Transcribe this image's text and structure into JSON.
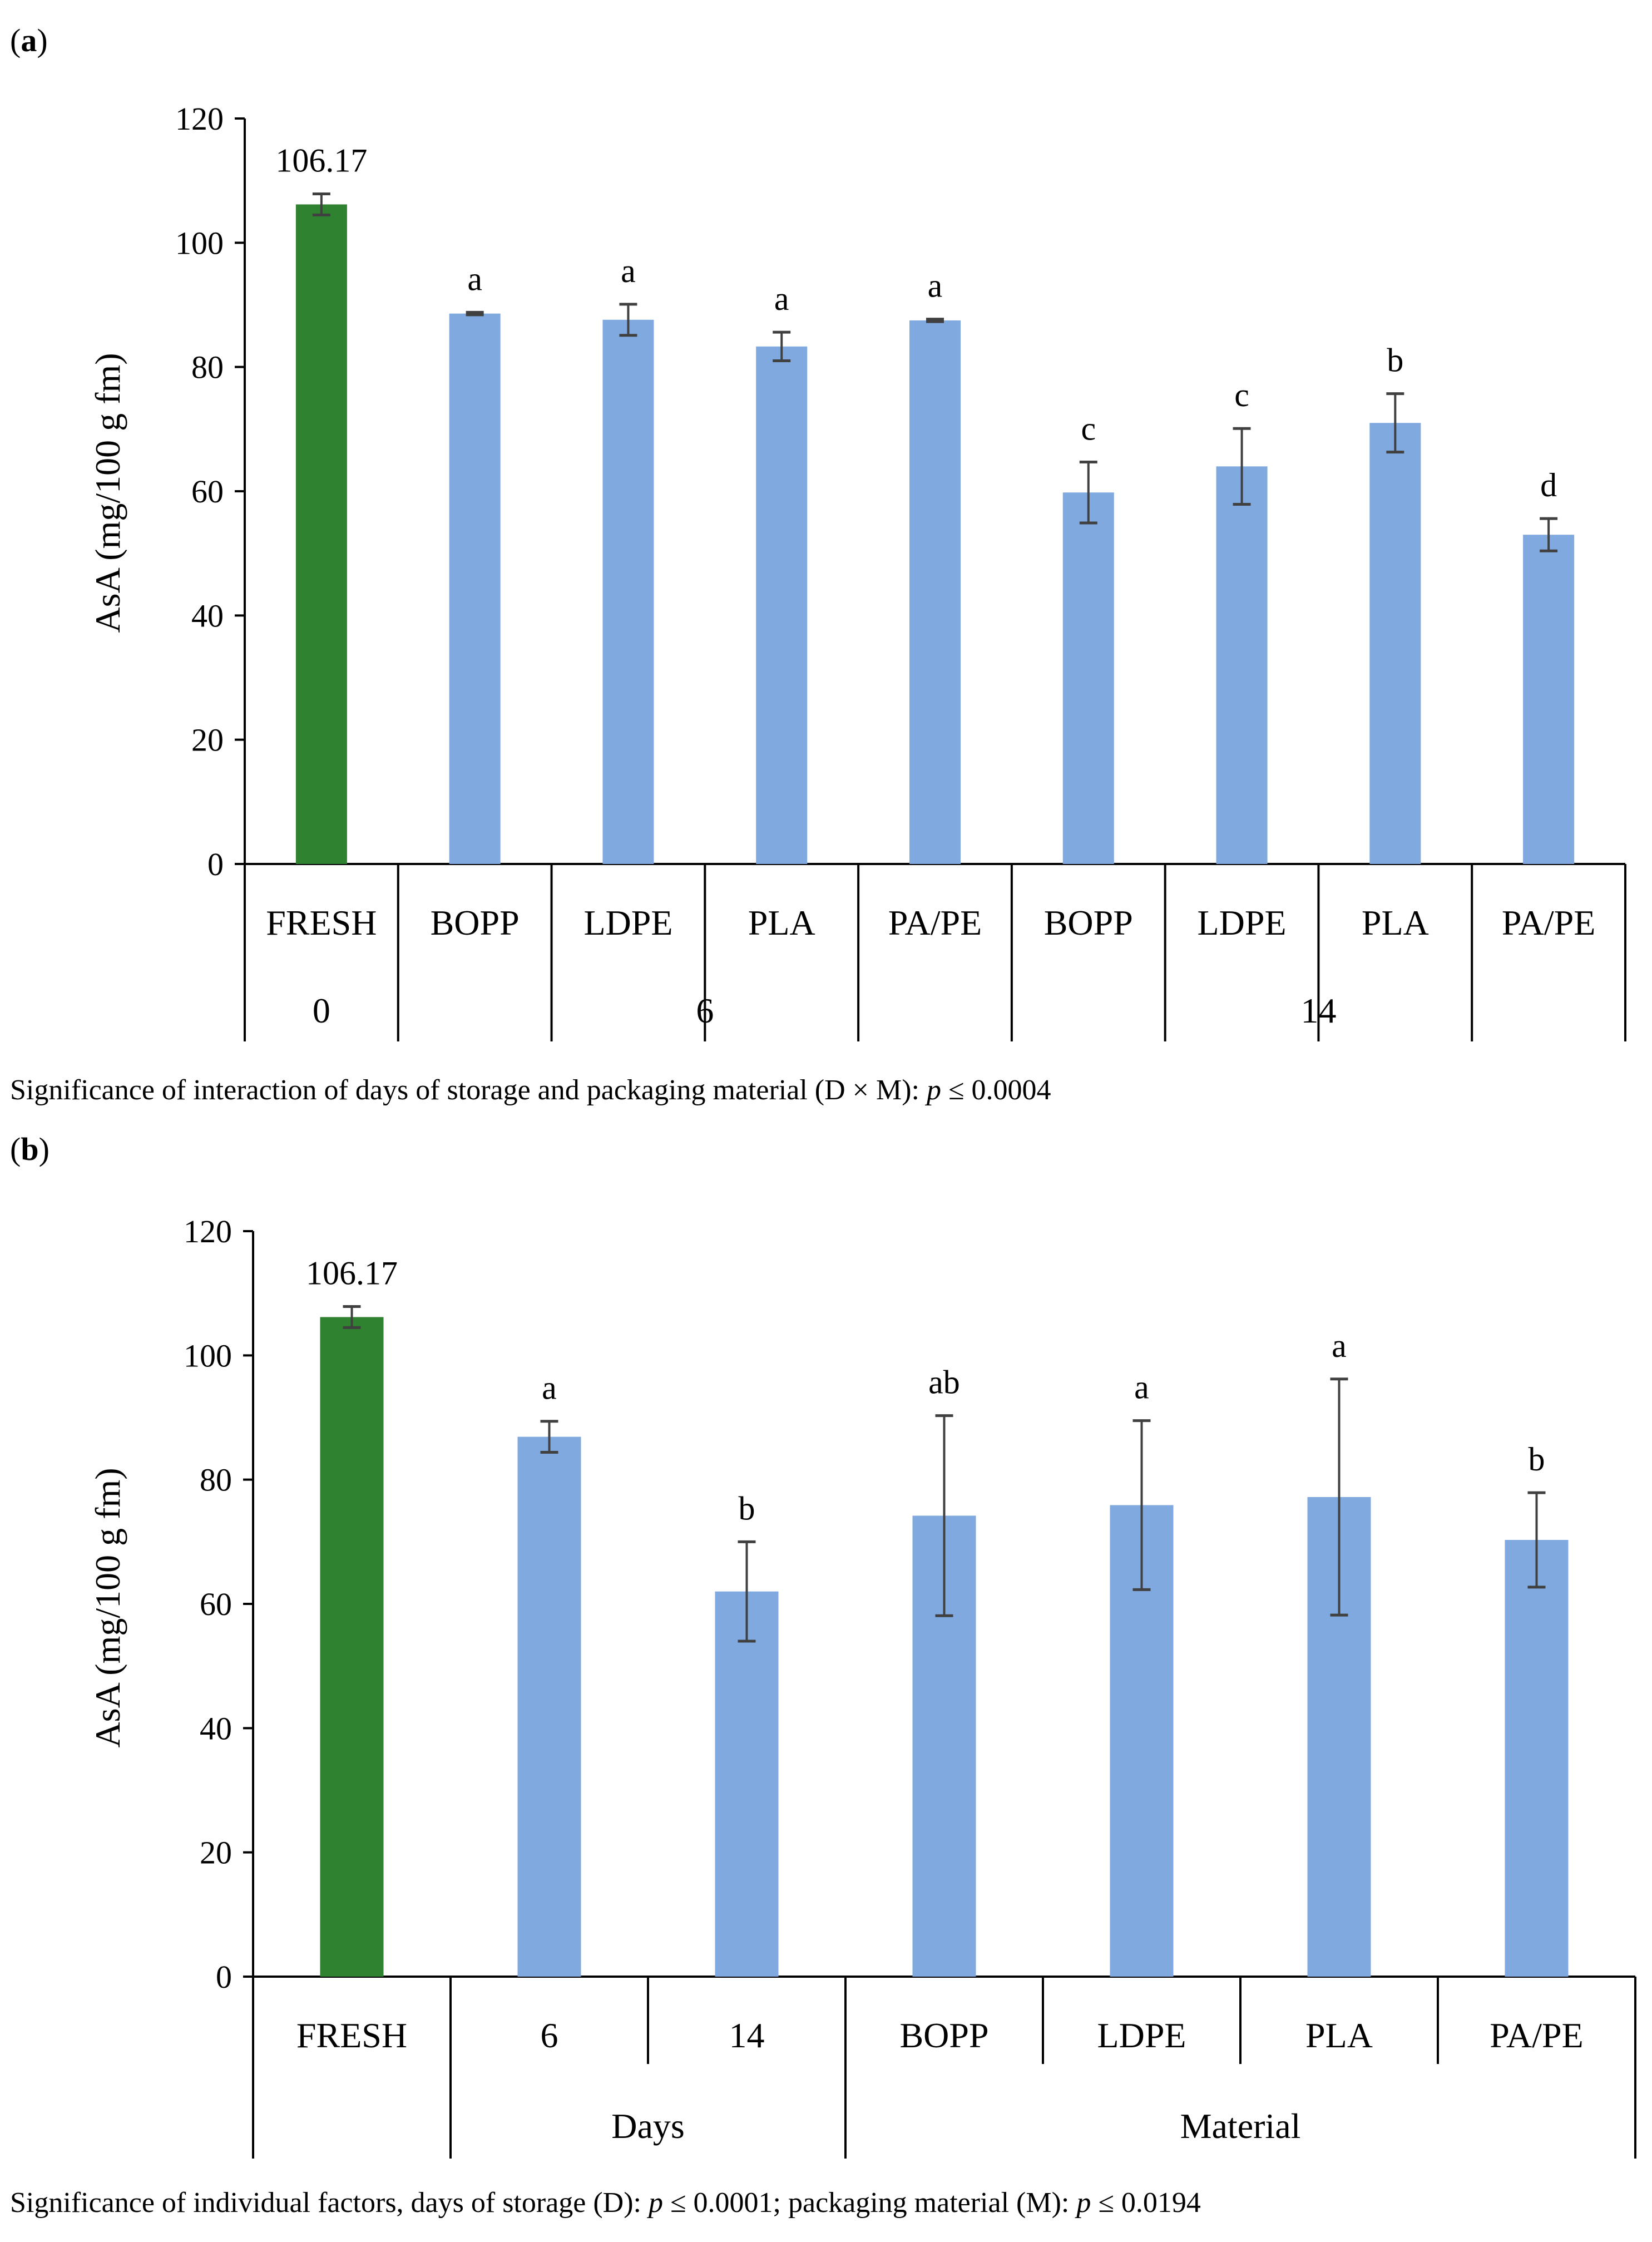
{
  "panels": [
    {
      "label_open": "(",
      "label_letter": "a",
      "label_close": ")",
      "caption": {
        "prefix": "Significance of interaction of days of storage and packaging material (D × M): ",
        "pvar": "p",
        "suffix": " ≤ 0.0004"
      }
    },
    {
      "label_open": "(",
      "label_letter": "b",
      "label_close": ")",
      "caption": {
        "prefix": "Significance of individual factors, days of storage (D): ",
        "pvar": "p",
        "middle": " ≤ 0.0001; packaging material (M): ",
        "pvar2": "p",
        "suffix": " ≤ 0.0194"
      }
    }
  ],
  "colors": {
    "fresh": "#2e8230",
    "bar": "#80aadf",
    "axis": "#000000",
    "error": "#404040"
  },
  "chart_data": [
    {
      "type": "bar",
      "title": "",
      "ylabel": "AsA (mg/100 g fm)",
      "ylim": [
        0,
        120
      ],
      "yticks": [
        "0",
        "20",
        "40",
        "60",
        "80",
        "100",
        "120"
      ],
      "categories": [
        "FRESH",
        "BOPP",
        "LDPE",
        "PLA",
        "PA/PE",
        "BOPP",
        "LDPE",
        "PLA",
        "PA/PE"
      ],
      "groups": [
        {
          "label": "0",
          "span": [
            0,
            0
          ]
        },
        {
          "label": "6",
          "span": [
            1,
            4
          ]
        },
        {
          "label": "14",
          "span": [
            5,
            8
          ]
        }
      ],
      "values": [
        106.17,
        88.6,
        87.6,
        83.3,
        87.5,
        59.8,
        64.0,
        71.0,
        53.0
      ],
      "errors": [
        1.7,
        0.2,
        2.5,
        2.3,
        0.2,
        4.9,
        6.1,
        4.7,
        2.6
      ],
      "letters": [
        "106.17",
        "a",
        "a",
        "a",
        "a",
        "c",
        "c",
        "b",
        "d"
      ],
      "fresh_index": 0
    },
    {
      "type": "bar",
      "title": "",
      "ylabel": "AsA (mg/100 g fm)",
      "ylim": [
        0,
        120
      ],
      "yticks": [
        "0",
        "20",
        "40",
        "60",
        "80",
        "100",
        "120"
      ],
      "categories": [
        "FRESH",
        "6",
        "14",
        "BOPP",
        "LDPE",
        "PLA",
        "PA/PE"
      ],
      "groups": [
        {
          "label": "",
          "span": [
            0,
            0
          ]
        },
        {
          "label": "Days",
          "span": [
            1,
            2
          ]
        },
        {
          "label": "Material",
          "span": [
            3,
            6
          ]
        }
      ],
      "values": [
        106.17,
        86.9,
        62.0,
        74.2,
        75.9,
        77.2,
        70.3
      ],
      "errors": [
        1.7,
        2.5,
        8.0,
        16.1,
        13.6,
        19.0,
        7.6
      ],
      "letters": [
        "106.17",
        "a",
        "b",
        "ab",
        "a",
        "a",
        "b"
      ],
      "fresh_index": 0
    }
  ]
}
